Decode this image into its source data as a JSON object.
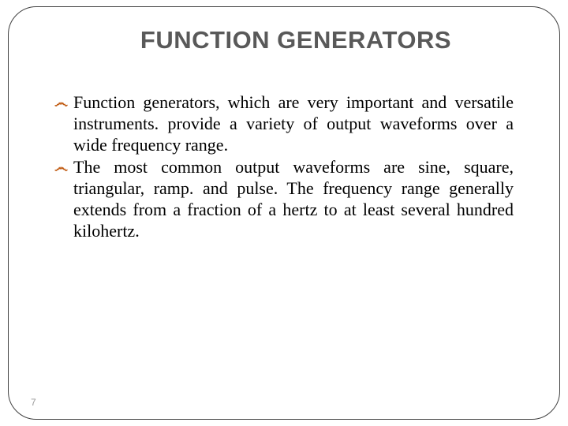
{
  "slide": {
    "title": "FUNCTION GENERATORS",
    "title_color": "#595959",
    "title_fontsize": 31,
    "bullet_color": "#c05a11",
    "bullet_glyph": "෴",
    "body_font": "Times New Roman",
    "body_fontsize": 22,
    "body_color": "#000000",
    "frame_border_color": "#404040",
    "frame_border_radius": 36,
    "background_color": "#ffffff",
    "bullets": [
      "Function generators, which are very important and versatile instruments. provide a variety of output waveforms over a wide frequency range.",
      "The most common output waveforms are sine, square, triangular, ramp. and pulse. The frequency range generally extends from a fraction of a hertz to at least several hundred kilohertz."
    ],
    "page_number": "7"
  }
}
